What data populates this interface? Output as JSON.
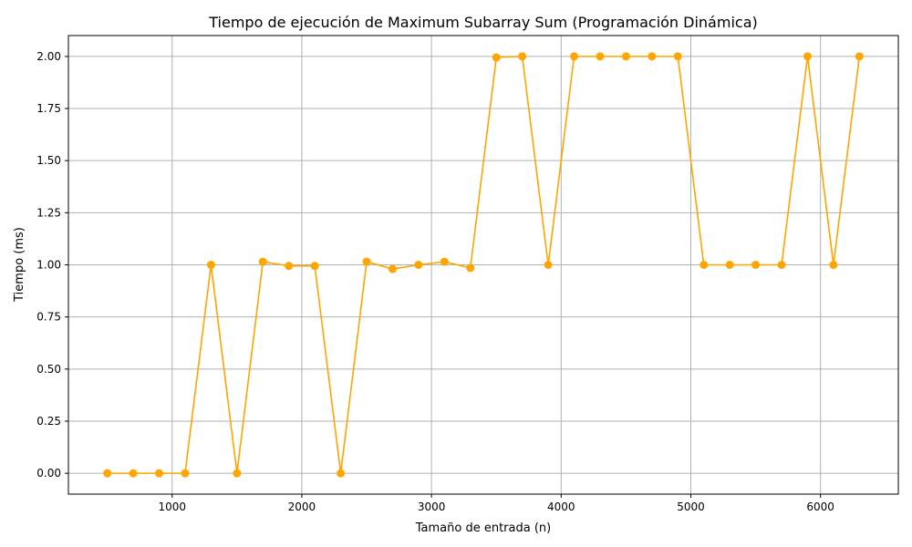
{
  "chart_data": {
    "type": "line",
    "title": "Tiempo de ejecución de Maximum Subarray Sum (Programación Dinámica)",
    "xlabel": "Tamaño de entrada (n)",
    "ylabel": "Tiempo (ms)",
    "xlim": [
      200,
      6600
    ],
    "ylim": [
      -0.1,
      2.1
    ],
    "xticks": [
      1000,
      2000,
      3000,
      4000,
      5000,
      6000
    ],
    "yticks": [
      "0.00",
      "0.25",
      "0.50",
      "0.75",
      "1.00",
      "1.25",
      "1.50",
      "1.75",
      "2.00"
    ],
    "grid": true,
    "color": "#ffa500",
    "series": [
      {
        "x": [
          500,
          700,
          900,
          1100,
          1300,
          1500,
          1700,
          1900,
          2100,
          2300,
          2500,
          2700,
          2900,
          3100,
          3300,
          3500,
          3700,
          3900,
          4100,
          4300,
          4500,
          4700,
          4900,
          5100,
          5300,
          5500,
          5700,
          5900,
          6100,
          6300
        ],
        "y": [
          0,
          0,
          0,
          0,
          1.0,
          0,
          1.015,
          0.995,
          0.995,
          0,
          1.015,
          0.98,
          1.0,
          1.015,
          0.985,
          1.995,
          2.0,
          1.0,
          2.0,
          2.0,
          2.0,
          2.0,
          2.0,
          1.0,
          1.0,
          1.0,
          1.0,
          2.0,
          1.0,
          2.0
        ]
      }
    ]
  }
}
